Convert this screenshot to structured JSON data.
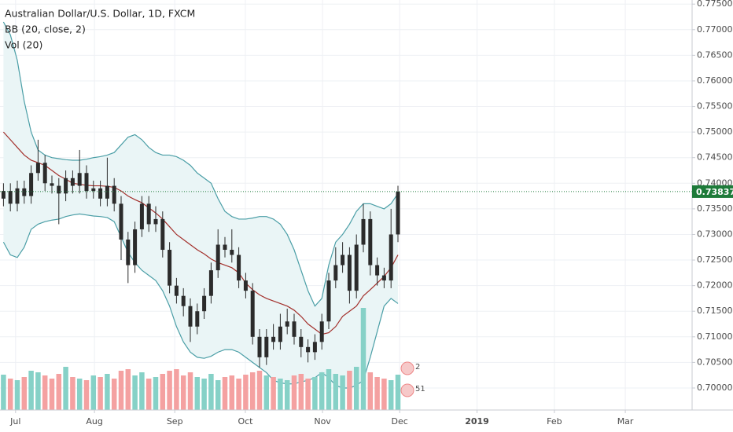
{
  "chart_data": {
    "type": "candlestick",
    "title": "Australian Dollar/U.S. Dollar, 1D, FXCM",
    "indicators": [
      "BB (20, close, 2)",
      "Vol (20)"
    ],
    "x": [
      1,
      3,
      5,
      7,
      9,
      11,
      13,
      15,
      17,
      19,
      21,
      23,
      25,
      27,
      29,
      31,
      33,
      35,
      37,
      39,
      41,
      43,
      45,
      47,
      49,
      51,
      53,
      55,
      57,
      59,
      61,
      63,
      65,
      67,
      69,
      71,
      73,
      75,
      77,
      79,
      81,
      83,
      85,
      87,
      89,
      91,
      93,
      95,
      97,
      99,
      101,
      103,
      105,
      107,
      109,
      111,
      113,
      115
    ],
    "open": [
      0.737,
      0.7385,
      0.736,
      0.739,
      0.7375,
      0.742,
      0.744,
      0.74,
      0.7395,
      0.738,
      0.741,
      0.7395,
      0.742,
      0.7385,
      0.739,
      0.737,
      0.7395,
      0.736,
      0.729,
      0.724,
      0.731,
      0.736,
      0.732,
      0.733,
      0.727,
      0.72,
      0.718,
      0.716,
      0.712,
      0.715,
      0.718,
      0.723,
      0.728,
      0.727,
      0.726,
      0.721,
      0.719,
      0.71,
      0.706,
      0.71,
      0.709,
      0.712,
      0.713,
      0.71,
      0.708,
      0.707,
      0.709,
      0.713,
      0.721,
      0.724,
      0.726,
      0.719,
      0.728,
      0.733,
      0.724,
      0.722,
      0.721,
      0.73
    ],
    "high": [
      0.74,
      0.74,
      0.7405,
      0.7405,
      0.7435,
      0.7485,
      0.7455,
      0.7415,
      0.741,
      0.7425,
      0.7425,
      0.7465,
      0.7435,
      0.7405,
      0.7405,
      0.745,
      0.741,
      0.7375,
      0.7305,
      0.7325,
      0.7375,
      0.7375,
      0.7355,
      0.7345,
      0.7285,
      0.7215,
      0.7195,
      0.7175,
      0.7165,
      0.7195,
      0.7245,
      0.731,
      0.7295,
      0.731,
      0.7275,
      0.7225,
      0.7205,
      0.7115,
      0.7115,
      0.7125,
      0.7145,
      0.7155,
      0.7145,
      0.7115,
      0.7095,
      0.7105,
      0.7145,
      0.7225,
      0.7275,
      0.7285,
      0.7275,
      0.73,
      0.736,
      0.7345,
      0.7255,
      0.7235,
      0.735,
      0.7395
    ],
    "low": [
      0.7355,
      0.7345,
      0.7345,
      0.736,
      0.736,
      0.7405,
      0.7385,
      0.738,
      0.732,
      0.7365,
      0.738,
      0.738,
      0.737,
      0.737,
      0.7355,
      0.7355,
      0.7345,
      0.725,
      0.7205,
      0.7225,
      0.7295,
      0.7305,
      0.7305,
      0.7255,
      0.7185,
      0.7165,
      0.714,
      0.709,
      0.7105,
      0.7135,
      0.7165,
      0.7215,
      0.7255,
      0.7245,
      0.7195,
      0.7175,
      0.7085,
      0.704,
      0.7045,
      0.7075,
      0.7075,
      0.7105,
      0.7085,
      0.706,
      0.705,
      0.7055,
      0.7075,
      0.7115,
      0.7195,
      0.7225,
      0.7165,
      0.7175,
      0.7265,
      0.722,
      0.72,
      0.7195,
      0.7195,
      0.7285
    ],
    "close": [
      0.7385,
      0.736,
      0.739,
      0.7375,
      0.742,
      0.744,
      0.74,
      0.7395,
      0.738,
      0.741,
      0.7395,
      0.742,
      0.7385,
      0.739,
      0.737,
      0.7395,
      0.736,
      0.729,
      0.724,
      0.731,
      0.736,
      0.732,
      0.733,
      0.727,
      0.72,
      0.718,
      0.716,
      0.712,
      0.715,
      0.718,
      0.723,
      0.728,
      0.727,
      0.726,
      0.721,
      0.719,
      0.71,
      0.706,
      0.71,
      0.709,
      0.712,
      0.713,
      0.71,
      0.708,
      0.707,
      0.709,
      0.713,
      0.721,
      0.724,
      0.726,
      0.719,
      0.728,
      0.733,
      0.724,
      0.722,
      0.721,
      0.73,
      0.73837
    ],
    "volume": [
      45,
      40,
      38,
      42,
      50,
      48,
      44,
      40,
      46,
      55,
      42,
      40,
      38,
      44,
      42,
      46,
      40,
      50,
      52,
      44,
      48,
      40,
      42,
      46,
      50,
      52,
      44,
      48,
      42,
      40,
      46,
      38,
      42,
      44,
      40,
      45,
      48,
      50,
      44,
      42,
      40,
      38,
      44,
      46,
      40,
      42,
      48,
      52,
      46,
      44,
      50,
      55,
      130,
      48,
      42,
      40,
      38,
      45
    ],
    "bands": {
      "upper": [
        0.7715,
        0.769,
        0.764,
        0.756,
        0.75,
        0.7465,
        0.7455,
        0.745,
        0.7448,
        0.7446,
        0.7445,
        0.7445,
        0.7447,
        0.745,
        0.7452,
        0.7455,
        0.746,
        0.7475,
        0.749,
        0.7495,
        0.7485,
        0.747,
        0.746,
        0.7455,
        0.7455,
        0.7452,
        0.7445,
        0.7435,
        0.742,
        0.741,
        0.74,
        0.737,
        0.7345,
        0.7335,
        0.733,
        0.733,
        0.7332,
        0.7335,
        0.7335,
        0.733,
        0.732,
        0.73,
        0.727,
        0.723,
        0.719,
        0.716,
        0.7175,
        0.724,
        0.7285,
        0.73,
        0.732,
        0.7345,
        0.736,
        0.736,
        0.7355,
        0.735,
        0.736,
        0.738
      ],
      "middle": [
        0.75,
        0.7485,
        0.747,
        0.7455,
        0.7445,
        0.744,
        0.7435,
        0.7425,
        0.7415,
        0.7408,
        0.74,
        0.7398,
        0.7396,
        0.7395,
        0.7395,
        0.7394,
        0.7392,
        0.7385,
        0.7375,
        0.7368,
        0.7362,
        0.7352,
        0.7342,
        0.733,
        0.7315,
        0.73,
        0.729,
        0.728,
        0.727,
        0.7262,
        0.7252,
        0.7245,
        0.724,
        0.7235,
        0.7225,
        0.7205,
        0.7192,
        0.7182,
        0.7175,
        0.717,
        0.7165,
        0.716,
        0.7152,
        0.714,
        0.7125,
        0.7115,
        0.7105,
        0.7108,
        0.712,
        0.714,
        0.715,
        0.716,
        0.718,
        0.7192,
        0.7205,
        0.7218,
        0.7235,
        0.726
      ],
      "lower": [
        0.7285,
        0.726,
        0.7255,
        0.7275,
        0.731,
        0.732,
        0.7325,
        0.7328,
        0.733,
        0.7335,
        0.7338,
        0.734,
        0.7338,
        0.7336,
        0.7335,
        0.7333,
        0.7325,
        0.7295,
        0.7265,
        0.7245,
        0.723,
        0.722,
        0.721,
        0.719,
        0.716,
        0.712,
        0.709,
        0.707,
        0.706,
        0.7058,
        0.7062,
        0.707,
        0.7075,
        0.7075,
        0.707,
        0.706,
        0.705,
        0.704,
        0.703,
        0.7015,
        0.701,
        0.7008,
        0.7008,
        0.7012,
        0.7015,
        0.702,
        0.703,
        0.702,
        0.7005,
        0.7,
        0.7,
        0.7005,
        0.7015,
        0.706,
        0.711,
        0.716,
        0.7175,
        0.7165
      ],
      "band_color": "#4a9ea6",
      "middle_color": "#a3302c",
      "fill": "#eaf5f6"
    },
    "candle_color": "#2b2b2b",
    "volume_colors": {
      "up": "#86d1c7",
      "down": "#f4a1a1"
    },
    "last_price_color": "#1e7b3a",
    "events": [
      "2",
      "51"
    ],
    "xlim": [
      0,
      200
    ],
    "xticks": [
      {
        "value": 4.5,
        "label": "Jul"
      },
      {
        "value": 27.3,
        "label": "Aug"
      },
      {
        "value": 50.5,
        "label": "Sep"
      },
      {
        "value": 70.9,
        "label": "Oct"
      },
      {
        "value": 93.2,
        "label": "Nov"
      },
      {
        "value": 115.5,
        "label": "Dec"
      },
      2019,
      {
        "value": 160.2,
        "label": "Feb"
      },
      {
        "value": 180.7,
        "label": "Mar"
      }
    ],
    "xtick_2019_value": null,
    "ylim": [
      0.6957,
      0.7758
    ],
    "yticks": [
      {
        "value": 0.7,
        "label": "0.70000"
      },
      {
        "value": 0.705,
        "label": "0.70500"
      },
      {
        "value": 0.71,
        "label": "0.71000"
      },
      {
        "value": 0.715,
        "label": "0.71500"
      },
      {
        "value": 0.72,
        "label": "0.72000"
      },
      {
        "value": 0.725,
        "label": "0.72500"
      },
      {
        "value": 0.73,
        "label": "0.73000"
      },
      {
        "value": 0.735,
        "label": "0.73500"
      },
      {
        "value": 0.74,
        "label": "0.74000"
      },
      {
        "value": 0.745,
        "label": "0.74500"
      },
      {
        "value": 0.75,
        "label": "0.75000"
      },
      {
        "value": 0.755,
        "label": "0.75500"
      },
      {
        "value": 0.76,
        "label": "0.76000"
      },
      {
        "value": 0.765,
        "label": "0.76500"
      },
      {
        "value": 0.77,
        "label": "0.77000"
      },
      {
        "value": 0.775,
        "label": "0.77500"
      }
    ],
    "grid": true
  }
}
